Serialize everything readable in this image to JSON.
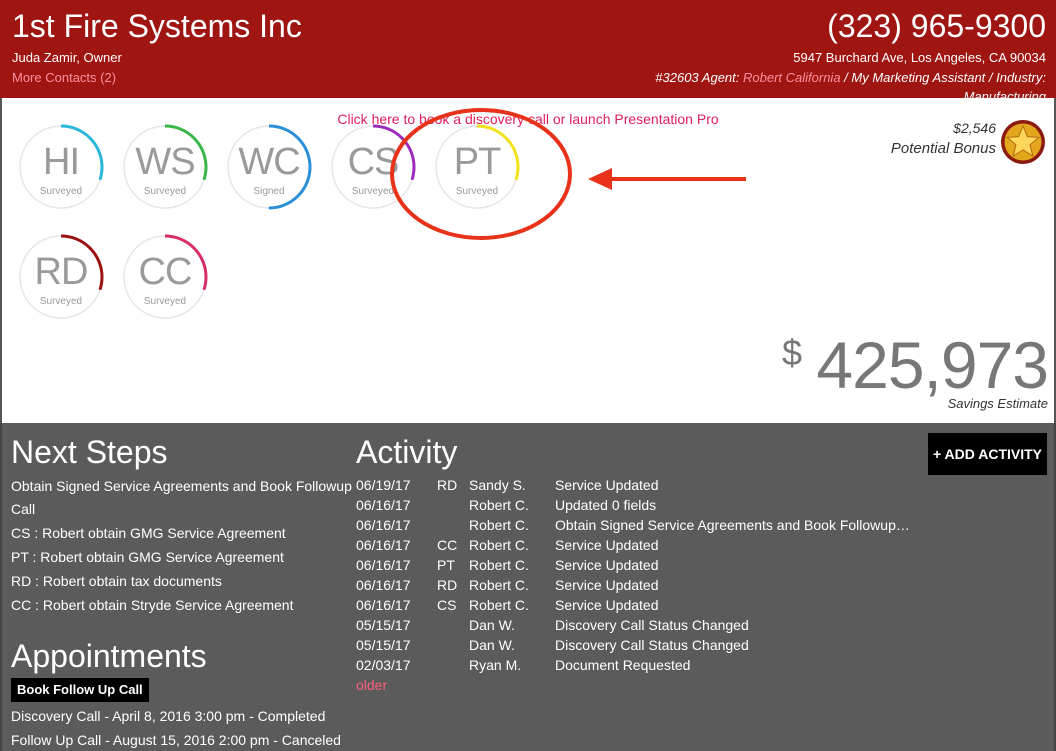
{
  "header": {
    "company_name": "1st Fire Systems Inc",
    "owner": "Juda Zamir, Owner",
    "more_contacts": "More Contacts (2)",
    "phone": "(323) 965-9300",
    "address": "5947 Burchard Ave, Los Angeles, CA 90034",
    "account_number": "#32603",
    "agent_prefix": " Agent: ",
    "agent_name": "Robert California",
    "separator1": " / ",
    "assistant": "My Marketing Assistant",
    "industry_prefix": " / Industry:",
    "industry_value": "Manufacturing"
  },
  "top_panel": {
    "book_call_link": "Click here to book a discovery call or launch Presentation Pro",
    "services": [
      {
        "abbr": "HI",
        "status": "Surveyed",
        "color": "#29b6d8",
        "progress": 0.3
      },
      {
        "abbr": "WS",
        "status": "Surveyed",
        "color": "#3cb54a",
        "progress": 0.3
      },
      {
        "abbr": "WC",
        "status": "Signed",
        "color": "#2a8fd6",
        "progress": 0.5
      },
      {
        "abbr": "CS",
        "status": "Surveyed",
        "color": "#9c2bbd",
        "progress": 0.3
      },
      {
        "abbr": "PT",
        "status": "Surveyed",
        "color": "#f2e21a",
        "progress": 0.3
      },
      {
        "abbr": "RD",
        "status": "Surveyed",
        "color": "#9c1111",
        "progress": 0.3
      },
      {
        "abbr": "CC",
        "status": "Surveyed",
        "color": "#d82d6b",
        "progress": 0.3
      }
    ],
    "bonus_amount": "$2,546",
    "bonus_label": "Potential Bonus",
    "savings_dollar": "$",
    "savings_value": "425,973",
    "savings_label": "Savings Estimate"
  },
  "next_steps": {
    "title": "Next Steps",
    "items": [
      "Obtain Signed Service Agreements and Book Followup",
      "Call",
      "CS : Robert obtain GMG Service Agreement",
      "PT : Robert obtain GMG Service Agreement",
      "RD : Robert obtain tax documents",
      "CC : Robert obtain Stryde Service Agreement"
    ]
  },
  "appointments": {
    "title": "Appointments",
    "button": "Book Follow Up Call",
    "items": [
      "Discovery Call - April 8, 2016 3:00 pm - Completed",
      "Follow Up Call - August 15, 2016 2:00 pm - Canceled"
    ]
  },
  "activity": {
    "title": "Activity",
    "add_button": "+ ADD ACTIVITY",
    "older_link": "older",
    "rows": [
      {
        "date": "06/19/17",
        "svc": "RD",
        "user": "Sandy S.",
        "desc": "Service Updated"
      },
      {
        "date": "06/16/17",
        "svc": "",
        "user": "Robert C.",
        "desc": "Updated 0 fields"
      },
      {
        "date": "06/16/17",
        "svc": "",
        "user": "Robert C.",
        "desc": "Obtain Signed Service Agreements and Book Followup…"
      },
      {
        "date": "06/16/17",
        "svc": "CC",
        "user": "Robert C.",
        "desc": "Service Updated"
      },
      {
        "date": "06/16/17",
        "svc": "PT",
        "user": "Robert C.",
        "desc": "Service Updated"
      },
      {
        "date": "06/16/17",
        "svc": "RD",
        "user": "Robert C.",
        "desc": "Service Updated"
      },
      {
        "date": "06/16/17",
        "svc": "CS",
        "user": "Robert C.",
        "desc": "Service Updated"
      },
      {
        "date": "05/15/17",
        "svc": "",
        "user": "Dan W.",
        "desc": "Discovery Call Status Changed"
      },
      {
        "date": "05/15/17",
        "svc": "",
        "user": "Dan W.",
        "desc": "Discovery Call Status Changed"
      },
      {
        "date": "02/03/17",
        "svc": "",
        "user": "Ryan M.",
        "desc": "Document Requested"
      }
    ]
  },
  "colors": {
    "header_bg": "#9e1512",
    "link_pink": "#ff8fa0",
    "panel_gray": "#5b5b5b",
    "annotation_red": "#e8321a"
  },
  "icons": {
    "bonus": "star-badge-icon"
  }
}
